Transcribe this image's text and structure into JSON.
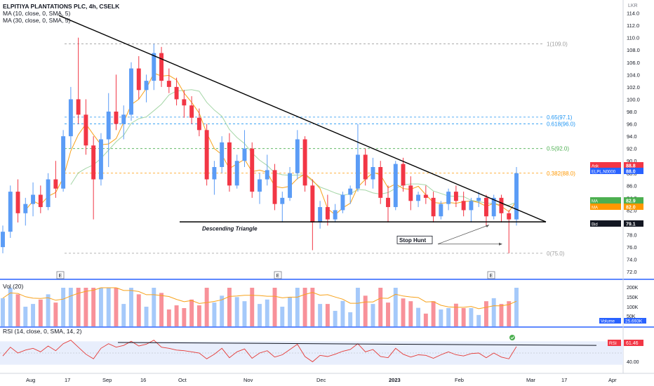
{
  "header": {
    "title": "ELPITIYA PLANTATIONS PLC, 4h, CSELK",
    "ma1": "MA (10, close, 0, SMA, 5)",
    "ma2": "MA (30, close, 0, SMA, 5)",
    "vol": "Vol (20)",
    "rsi": "RSI (14, close, 0, SMA, 14, 2)"
  },
  "colors": {
    "up": "#5b9cf6",
    "down": "#f23645",
    "ma10": "#f7a21b",
    "ma30": "#a5d6a7",
    "trend": "#000000",
    "fib_gray": "#9e9e9e",
    "fib_green": "#4caf50",
    "fib_blue": "#2196f3",
    "fib_orange": "#ff9800",
    "rsi_line": "#e53935",
    "rsi_band": "#e8eefc",
    "divider": "#2962ff"
  },
  "chart_data": {
    "type": "candlestick",
    "currency": "LKR",
    "timeframe": "4h",
    "price_axis": {
      "range": [
        71,
        116
      ],
      "ticks": [
        72.0,
        74.0,
        76.0,
        78.0,
        80.0,
        82.0,
        84.0,
        86.0,
        88.0,
        90.0,
        92.0,
        94.0,
        96.0,
        98.0,
        100.0,
        102.0,
        104.0,
        106.0,
        108.0,
        110.0,
        112.0,
        114.0,
        116.0
      ]
    },
    "x_axis": {
      "labels": [
        "Aug",
        "17",
        "Sep",
        "16",
        "Oct",
        "Nov",
        "Dec",
        "2023",
        "Feb",
        "Mar",
        "17",
        "Apr"
      ]
    },
    "earnings_markers": [
      "E",
      "E",
      "E"
    ],
    "fib_levels": [
      {
        "label": "1(109.0)",
        "value": 109.0,
        "color": "gray"
      },
      {
        "label": "0.65(97.1)",
        "value": 97.1,
        "color": "blue"
      },
      {
        "label": "0.618(96.0)",
        "value": 96.0,
        "color": "blue"
      },
      {
        "label": "0.5(92.0)",
        "value": 92.0,
        "color": "green"
      },
      {
        "label": "0.382(88.0)",
        "value": 88.0,
        "color": "orange"
      },
      {
        "label": "0(75.0)",
        "value": 75.0,
        "color": "gray"
      }
    ],
    "annotations": [
      "Descending Triangle",
      "Stop Hunt"
    ],
    "price_badges": [
      {
        "label": "Ask",
        "value": "88.8",
        "color": "#f23645"
      },
      {
        "label": "ELPL.N0000",
        "value": "88.0",
        "color": "#2962ff"
      },
      {
        "label": "MA",
        "value": "82.9",
        "color": "#4caf50"
      },
      {
        "label": "MA",
        "value": "82.0",
        "color": "#ff9800"
      },
      {
        "label": "Bid",
        "value": "79.1",
        "color": "#131722"
      }
    ],
    "volume": {
      "axis_ticks": [
        "200K",
        "150K",
        "100K",
        "50K"
      ],
      "badges": [
        {
          "label": "Volume",
          "value": "25.693K",
          "color": "#2962ff"
        }
      ]
    },
    "rsi": {
      "axis_ticks": [
        "40.00"
      ],
      "value_badge": {
        "label": "RSI",
        "value": "61.46",
        "color": "#f23645"
      }
    },
    "candles": [
      {
        "o": 76.0,
        "h": 79.5,
        "l": 75.0,
        "c": 78.5
      },
      {
        "o": 78.5,
        "h": 86.0,
        "l": 77.5,
        "c": 85.0
      },
      {
        "o": 85.0,
        "h": 87.0,
        "l": 80.0,
        "c": 81.5
      },
      {
        "o": 81.5,
        "h": 84.0,
        "l": 79.5,
        "c": 83.0
      },
      {
        "o": 83.0,
        "h": 86.5,
        "l": 81.0,
        "c": 84.5
      },
      {
        "o": 84.5,
        "h": 86.0,
        "l": 81.5,
        "c": 82.5
      },
      {
        "o": 82.5,
        "h": 88.0,
        "l": 82.0,
        "c": 87.0
      },
      {
        "o": 87.0,
        "h": 90.0,
        "l": 84.0,
        "c": 85.5
      },
      {
        "o": 85.5,
        "h": 95.0,
        "l": 85.0,
        "c": 94.0
      },
      {
        "o": 94.0,
        "h": 102.0,
        "l": 92.0,
        "c": 100.0
      },
      {
        "o": 100.0,
        "h": 110.0,
        "l": 96.0,
        "c": 97.5
      },
      {
        "o": 97.5,
        "h": 100.0,
        "l": 91.0,
        "c": 92.5
      },
      {
        "o": 92.5,
        "h": 94.0,
        "l": 80.5,
        "c": 87.0
      },
      {
        "o": 87.0,
        "h": 94.5,
        "l": 86.0,
        "c": 93.5
      },
      {
        "o": 93.5,
        "h": 101.0,
        "l": 89.0,
        "c": 98.0
      },
      {
        "o": 98.0,
        "h": 104.0,
        "l": 95.0,
        "c": 96.0
      },
      {
        "o": 96.0,
        "h": 99.0,
        "l": 93.5,
        "c": 97.5
      },
      {
        "o": 97.5,
        "h": 106.0,
        "l": 96.5,
        "c": 105.0
      },
      {
        "o": 105.0,
        "h": 107.0,
        "l": 100.0,
        "c": 101.5
      },
      {
        "o": 101.5,
        "h": 104.0,
        "l": 99.5,
        "c": 103.0
      },
      {
        "o": 103.0,
        "h": 109.0,
        "l": 101.5,
        "c": 107.5
      },
      {
        "o": 107.5,
        "h": 108.5,
        "l": 102.0,
        "c": 103.0
      },
      {
        "o": 103.0,
        "h": 105.0,
        "l": 101.0,
        "c": 102.0
      },
      {
        "o": 102.0,
        "h": 103.5,
        "l": 99.0,
        "c": 100.0
      },
      {
        "o": 100.0,
        "h": 101.5,
        "l": 97.0,
        "c": 99.0
      },
      {
        "o": 99.0,
        "h": 100.5,
        "l": 96.0,
        "c": 97.0
      },
      {
        "o": 97.0,
        "h": 98.5,
        "l": 94.0,
        "c": 95.0
      },
      {
        "o": 95.0,
        "h": 96.0,
        "l": 86.0,
        "c": 87.0
      },
      {
        "o": 87.0,
        "h": 90.0,
        "l": 84.5,
        "c": 89.0
      },
      {
        "o": 89.0,
        "h": 94.0,
        "l": 88.0,
        "c": 93.0
      },
      {
        "o": 93.0,
        "h": 94.5,
        "l": 85.0,
        "c": 86.0
      },
      {
        "o": 86.0,
        "h": 91.0,
        "l": 85.5,
        "c": 90.0
      },
      {
        "o": 90.0,
        "h": 95.0,
        "l": 89.0,
        "c": 92.0
      },
      {
        "o": 92.0,
        "h": 93.0,
        "l": 84.0,
        "c": 85.0
      },
      {
        "o": 85.0,
        "h": 88.0,
        "l": 83.0,
        "c": 87.0
      },
      {
        "o": 87.0,
        "h": 91.0,
        "l": 86.0,
        "c": 88.5
      },
      {
        "o": 88.5,
        "h": 89.5,
        "l": 82.0,
        "c": 83.0
      },
      {
        "o": 83.0,
        "h": 85.0,
        "l": 80.0,
        "c": 84.0
      },
      {
        "o": 84.0,
        "h": 89.0,
        "l": 83.5,
        "c": 88.0
      },
      {
        "o": 88.0,
        "h": 95.0,
        "l": 87.0,
        "c": 93.5
      },
      {
        "o": 93.5,
        "h": 94.0,
        "l": 85.0,
        "c": 86.0
      },
      {
        "o": 86.0,
        "h": 87.0,
        "l": 75.5,
        "c": 80.0
      },
      {
        "o": 80.0,
        "h": 83.5,
        "l": 79.0,
        "c": 82.5
      },
      {
        "o": 82.5,
        "h": 84.5,
        "l": 79.5,
        "c": 80.5
      },
      {
        "o": 80.5,
        "h": 83.0,
        "l": 80.0,
        "c": 82.0
      },
      {
        "o": 82.0,
        "h": 85.0,
        "l": 81.5,
        "c": 84.5
      },
      {
        "o": 84.5,
        "h": 86.0,
        "l": 83.0,
        "c": 85.5
      },
      {
        "o": 85.5,
        "h": 96.0,
        "l": 85.0,
        "c": 91.0
      },
      {
        "o": 91.0,
        "h": 92.0,
        "l": 86.0,
        "c": 87.0
      },
      {
        "o": 87.0,
        "h": 90.5,
        "l": 85.5,
        "c": 89.0
      },
      {
        "o": 89.0,
        "h": 90.0,
        "l": 83.0,
        "c": 84.0
      },
      {
        "o": 84.0,
        "h": 86.0,
        "l": 80.0,
        "c": 82.5
      },
      {
        "o": 82.5,
        "h": 90.0,
        "l": 82.0,
        "c": 89.5
      },
      {
        "o": 89.5,
        "h": 90.5,
        "l": 85.0,
        "c": 86.0
      },
      {
        "o": 86.0,
        "h": 87.5,
        "l": 82.0,
        "c": 83.5
      },
      {
        "o": 83.5,
        "h": 85.0,
        "l": 82.5,
        "c": 84.5
      },
      {
        "o": 84.5,
        "h": 86.0,
        "l": 83.0,
        "c": 84.0
      },
      {
        "o": 84.0,
        "h": 85.0,
        "l": 80.0,
        "c": 81.0
      },
      {
        "o": 81.0,
        "h": 83.5,
        "l": 80.5,
        "c": 83.0
      },
      {
        "o": 83.0,
        "h": 85.5,
        "l": 82.0,
        "c": 85.0
      },
      {
        "o": 85.0,
        "h": 86.0,
        "l": 82.5,
        "c": 83.5
      },
      {
        "o": 83.5,
        "h": 85.0,
        "l": 81.0,
        "c": 82.0
      },
      {
        "o": 82.0,
        "h": 84.0,
        "l": 80.0,
        "c": 83.5
      },
      {
        "o": 83.5,
        "h": 85.0,
        "l": 82.5,
        "c": 84.0
      },
      {
        "o": 84.0,
        "h": 84.5,
        "l": 79.5,
        "c": 81.0
      },
      {
        "o": 81.0,
        "h": 84.5,
        "l": 80.5,
        "c": 84.0
      },
      {
        "o": 84.0,
        "h": 84.5,
        "l": 80.0,
        "c": 81.5
      },
      {
        "o": 81.5,
        "h": 82.0,
        "l": 75.0,
        "c": 80.5
      },
      {
        "o": 80.5,
        "h": 89.0,
        "l": 79.5,
        "c": 88.0
      }
    ],
    "rsi_values": [
      45,
      60,
      50,
      55,
      58,
      52,
      62,
      54,
      66,
      72,
      60,
      48,
      40,
      58,
      66,
      60,
      63,
      70,
      62,
      65,
      72,
      60,
      58,
      55,
      54,
      52,
      50,
      40,
      48,
      58,
      42,
      52,
      57,
      41,
      50,
      54,
      43,
      47,
      56,
      65,
      44,
      35,
      46,
      44,
      48,
      53,
      56,
      66,
      52,
      56,
      44,
      42,
      58,
      48,
      43,
      47,
      46,
      41,
      47,
      52,
      47,
      45,
      49,
      50,
      42,
      50,
      43,
      40,
      61
    ]
  }
}
